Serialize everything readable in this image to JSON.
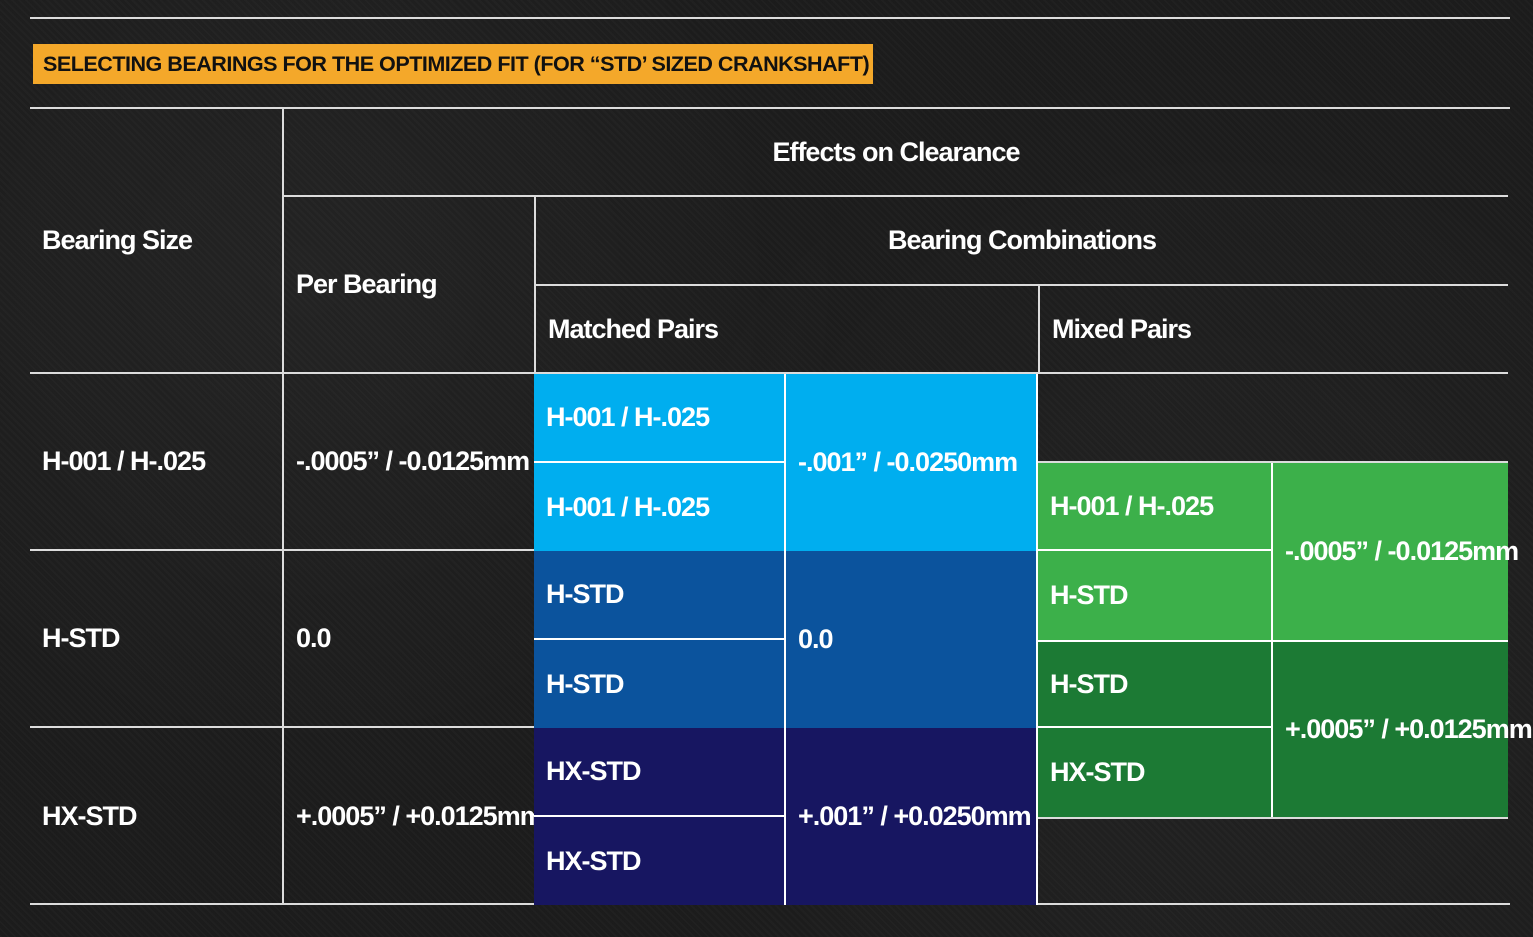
{
  "title": "SELECTING BEARINGS FOR THE OPTIMIZED FIT (FOR “STD’ SIZED CRANKSHAFT)",
  "headers": {
    "bearing_size": "Bearing Size",
    "effects_on_clearance": "Effects on Clearance",
    "per_bearing": "Per Bearing",
    "bearing_combinations": "Bearing Combinations",
    "matched_pairs": "Matched Pairs",
    "mixed_pairs": "Mixed Pairs"
  },
  "rows": [
    {
      "size": "H-001 / H-.025",
      "per_bearing": "-.0005” / -0.0125mm"
    },
    {
      "size": "H-STD",
      "per_bearing": "0.0"
    },
    {
      "size": "HX-STD",
      "per_bearing": "+.0005” / +0.0125mm"
    }
  ],
  "matched": [
    {
      "a": "H-001 / H-.025",
      "b": "H-001 / H-.025",
      "effect": "-.001” / -0.0250mm"
    },
    {
      "a": "H-STD",
      "b": "H-STD",
      "effect": "0.0"
    },
    {
      "a": "HX-STD",
      "b": "HX-STD",
      "effect": "+.001” / +0.0250mm"
    }
  ],
  "mixed": [
    {
      "a": "H-001 / H-.025",
      "b": "H-STD",
      "effect": "-.0005” / -0.0125mm"
    },
    {
      "a": "H-STD",
      "b": "HX-STD",
      "effect": "+.0005” / +0.0125mm"
    }
  ],
  "colors": {
    "title_bg": "#f4a82a",
    "matched_light": "#00aeef",
    "matched_mid": "#0b539d",
    "matched_dark": "#171661",
    "mixed_light": "#3cb04a",
    "mixed_dark": "#1c7a34"
  }
}
